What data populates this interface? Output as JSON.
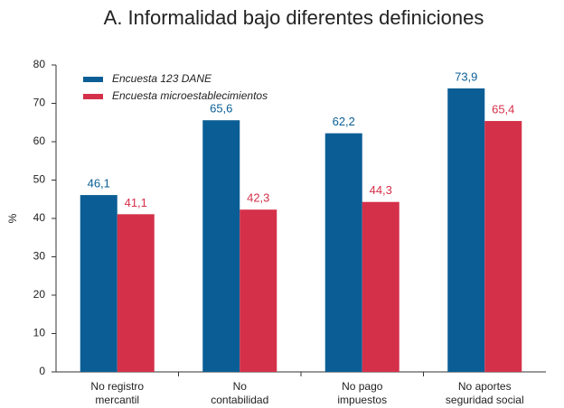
{
  "chart_data": {
    "type": "bar",
    "title": "A. Informalidad bajo diferentes definiciones",
    "y_label": "%",
    "categories": [
      [
        "No registro",
        "mercantil"
      ],
      [
        "No",
        "contabilidad"
      ],
      [
        "No pago",
        "impuestos"
      ],
      [
        "No aportes",
        "seguridad social"
      ]
    ],
    "series": [
      {
        "name": "Encuesta 123 DANE",
        "color": "#0b5e95",
        "values": [
          46.1,
          65.6,
          62.2,
          73.9
        ],
        "value_labels": [
          "46,1",
          "65,6",
          "62,2",
          "73,9"
        ]
      },
      {
        "name": "Encuesta microestablecimientos",
        "color": "#d5304a",
        "values": [
          41.1,
          42.3,
          44.3,
          65.4
        ],
        "value_labels": [
          "41,1",
          "42,3",
          "44,3",
          "65,4"
        ]
      }
    ],
    "ylim": [
      0,
      80
    ],
    "yticks": [
      0,
      10,
      20,
      30,
      40,
      50,
      60,
      70,
      80
    ],
    "legend": "top-left"
  }
}
